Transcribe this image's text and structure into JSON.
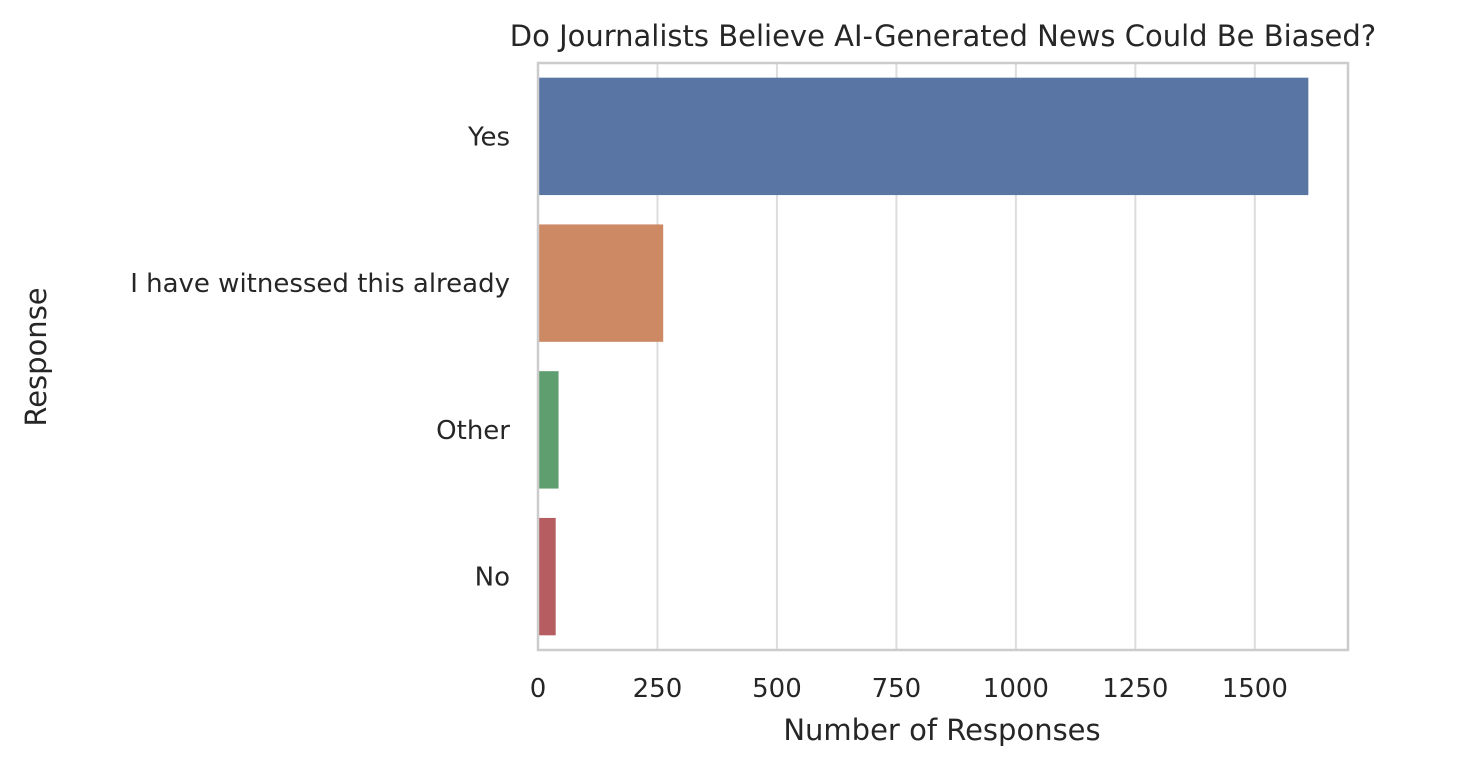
{
  "chart_data": {
    "type": "bar",
    "orientation": "horizontal",
    "title": "Do Journalists Believe AI-Generated News Could Be Biased?",
    "xlabel": "Number of Responses",
    "ylabel": "Response",
    "categories": [
      "Yes",
      "I have witnessed this already",
      "Other",
      "No"
    ],
    "values": [
      1612,
      262,
      43,
      37
    ],
    "xlim": [
      0,
      1695
    ],
    "xticks": [
      0,
      250,
      500,
      750,
      1000,
      1250,
      1500
    ],
    "colors": [
      "#5875a4",
      "#cc8963",
      "#5f9e6e",
      "#b55d60"
    ],
    "grid": "vertical",
    "legend": "none"
  },
  "style": {
    "gridColor": "#dddddd",
    "spineColor": "#cccccc",
    "textColor": "#262626"
  }
}
